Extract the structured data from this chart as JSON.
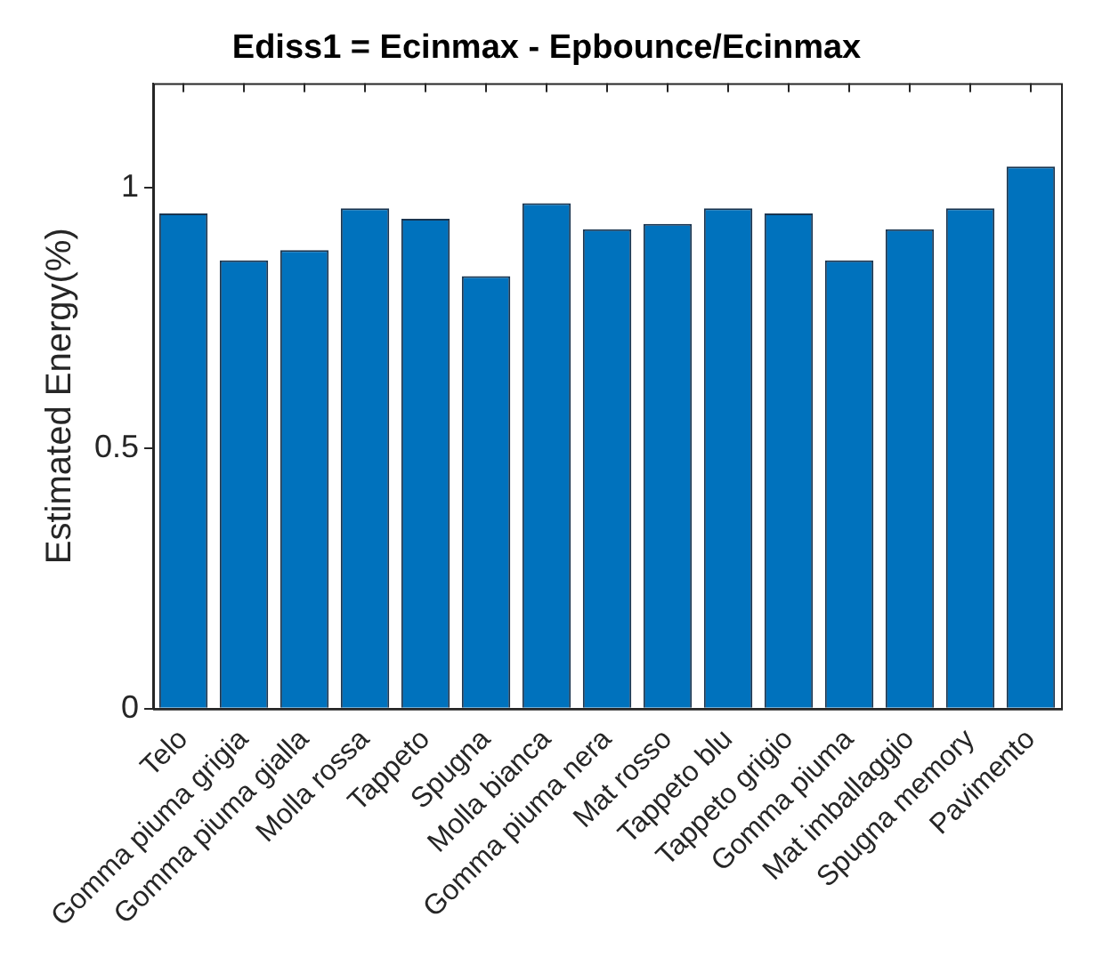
{
  "chart_data": {
    "type": "bar",
    "title": "Ediss1 = Ecinmax - Epbounce/Ecinmax",
    "ylabel": "Estimated Energy(%)",
    "categories": [
      "Telo",
      "Gomma piuma grigia",
      "Gomma piuma gialla",
      "Molla rossa",
      "Tappeto",
      "Spugna",
      "Molla bianca",
      "Gomma piuma nera",
      "Mat rosso",
      "Tappeto blu",
      "Tappeto grigio",
      "Gomma piuma",
      "Mat imballaggio",
      "Spugna memory",
      "Pavimento"
    ],
    "values": [
      0.95,
      0.86,
      0.88,
      0.96,
      0.94,
      0.83,
      0.97,
      0.92,
      0.93,
      0.96,
      0.95,
      0.86,
      0.92,
      0.96,
      1.04
    ],
    "color": "#0072bd",
    "ylim": [
      0,
      1.2
    ],
    "yticks": [
      0,
      0.5,
      1
    ],
    "grid": false
  }
}
